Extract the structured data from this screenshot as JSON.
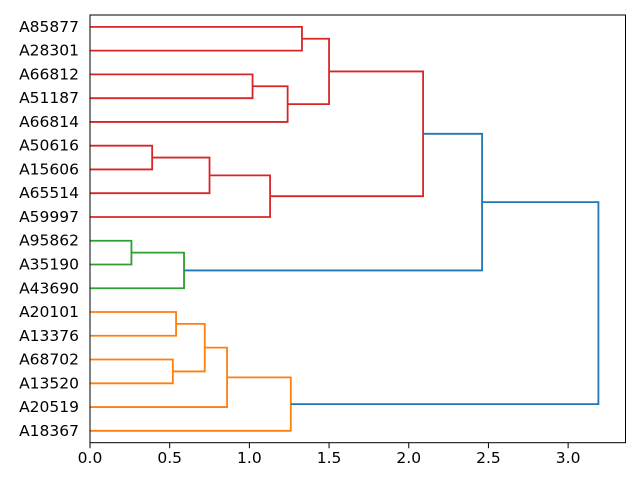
{
  "figure": {
    "background": "#ffffff",
    "axes_edge_color": "#000000",
    "tick_color": "#000000",
    "text_color": "#000000"
  },
  "chart_data": {
    "type": "dendrogram",
    "orientation": "right",
    "title": "",
    "xlabel": "",
    "ylabel": "",
    "grid": false,
    "legend_position": "none",
    "xlim": [
      0.0,
      3.36
    ],
    "x_ticks": [
      0.0,
      0.5,
      1.0,
      1.5,
      2.0,
      2.5,
      3.0
    ],
    "x_tick_labels": [
      "0.0",
      "0.5",
      "1.0",
      "1.5",
      "2.0",
      "2.5",
      "3.0"
    ],
    "colors": {
      "above_threshold": "#1f77b4",
      "cluster_red": "#d62728",
      "cluster_green": "#2ca02c",
      "cluster_orange": "#ff7f0e"
    },
    "leaves": [
      "A85877",
      "A28301",
      "A66812",
      "A51187",
      "A66814",
      "A50616",
      "A15606",
      "A65514",
      "A59997",
      "A95862",
      "A35190",
      "A43690",
      "A20101",
      "A13376",
      "A68702",
      "A13520",
      "A20519",
      "A18367"
    ],
    "merges": [
      {
        "children": [
          "L0",
          "L1"
        ],
        "distance": 1.33,
        "color": "cluster_red"
      },
      {
        "children": [
          "L2",
          "L3"
        ],
        "distance": 1.02,
        "color": "cluster_red"
      },
      {
        "children": [
          "M1",
          "L4"
        ],
        "distance": 1.24,
        "color": "cluster_red"
      },
      {
        "children": [
          "M0",
          "M2"
        ],
        "distance": 1.5,
        "color": "cluster_red"
      },
      {
        "children": [
          "L5",
          "L6"
        ],
        "distance": 0.39,
        "color": "cluster_red"
      },
      {
        "children": [
          "M4",
          "L7"
        ],
        "distance": 0.75,
        "color": "cluster_red"
      },
      {
        "children": [
          "M5",
          "L8"
        ],
        "distance": 1.13,
        "color": "cluster_red"
      },
      {
        "children": [
          "M3",
          "M6"
        ],
        "distance": 2.09,
        "color": "cluster_red"
      },
      {
        "children": [
          "L9",
          "L10"
        ],
        "distance": 0.26,
        "color": "cluster_green"
      },
      {
        "children": [
          "M8",
          "L11"
        ],
        "distance": 0.59,
        "color": "cluster_green"
      },
      {
        "children": [
          "M7",
          "M9"
        ],
        "distance": 2.46,
        "color": "above_threshold"
      },
      {
        "children": [
          "L12",
          "L13"
        ],
        "distance": 0.54,
        "color": "cluster_orange"
      },
      {
        "children": [
          "L14",
          "L15"
        ],
        "distance": 0.52,
        "color": "cluster_orange"
      },
      {
        "children": [
          "M11",
          "M12"
        ],
        "distance": 0.72,
        "color": "cluster_orange"
      },
      {
        "children": [
          "M13",
          "L16"
        ],
        "distance": 0.86,
        "color": "cluster_orange"
      },
      {
        "children": [
          "M14",
          "L17"
        ],
        "distance": 1.26,
        "color": "cluster_orange"
      },
      {
        "children": [
          "M10",
          "M15"
        ],
        "distance": 3.19,
        "color": "above_threshold"
      }
    ]
  }
}
